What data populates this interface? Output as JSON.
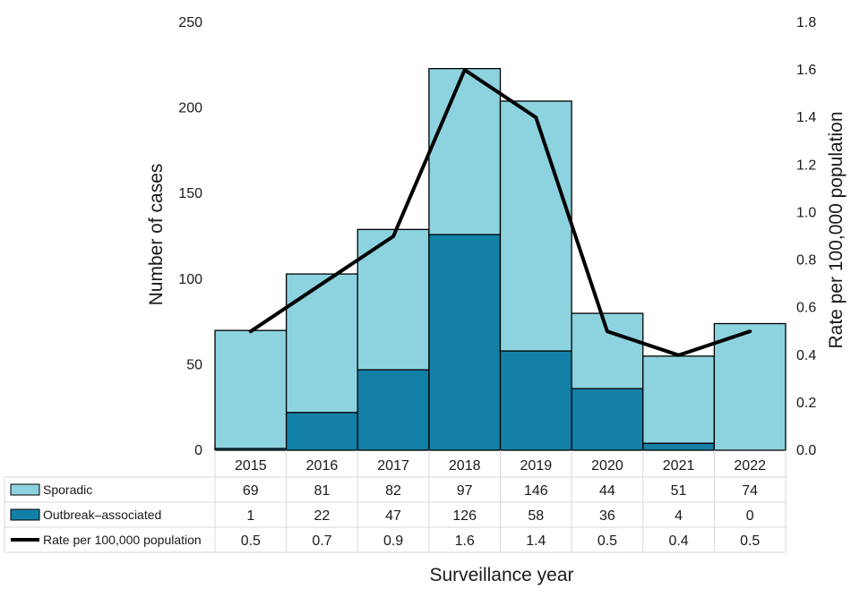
{
  "chart_data": {
    "type": "bar",
    "subtype": "stacked bar with line on secondary axis and data table",
    "categories": [
      "2015",
      "2016",
      "2017",
      "2018",
      "2019",
      "2020",
      "2021",
      "2022"
    ],
    "series": [
      {
        "name": "Sporadic",
        "kind": "bar",
        "axis": "left",
        "color": "#8cd3df",
        "values": [
          69,
          81,
          82,
          97,
          146,
          44,
          51,
          74
        ],
        "display": [
          "69",
          "81",
          "82",
          "97",
          "146",
          "44",
          "51",
          "74"
        ]
      },
      {
        "name": "Outbreak–associated",
        "kind": "bar",
        "axis": "left",
        "color": "#1380a8",
        "values": [
          1,
          22,
          47,
          126,
          58,
          36,
          4,
          0
        ],
        "display": [
          "1",
          "22",
          "47",
          "126",
          "58",
          "36",
          "4",
          "0"
        ]
      },
      {
        "name": "Rate per 100,000 population",
        "kind": "line",
        "axis": "right",
        "color": "#000000",
        "values": [
          0.5,
          0.7,
          0.9,
          1.6,
          1.4,
          0.5,
          0.4,
          0.5
        ],
        "display": [
          "0.5",
          "0.7",
          "0.9",
          "1.6",
          "1.4",
          "0.5",
          "0.4",
          "0.5"
        ]
      }
    ],
    "ylabel": "Number of cases",
    "y2label": "Rate per 100,000 population",
    "xlabel": "Surveillance year",
    "ylim": [
      0,
      250
    ],
    "y2lim": [
      0,
      1.8
    ],
    "yticks": [
      "0",
      "50",
      "100",
      "150",
      "200",
      "250"
    ],
    "y2ticks": [
      "0.0",
      "0.2",
      "0.4",
      "0.6",
      "0.8",
      "1.0",
      "1.2",
      "1.4",
      "1.6",
      "1.8"
    ],
    "legend_placement": "data table below plot"
  }
}
